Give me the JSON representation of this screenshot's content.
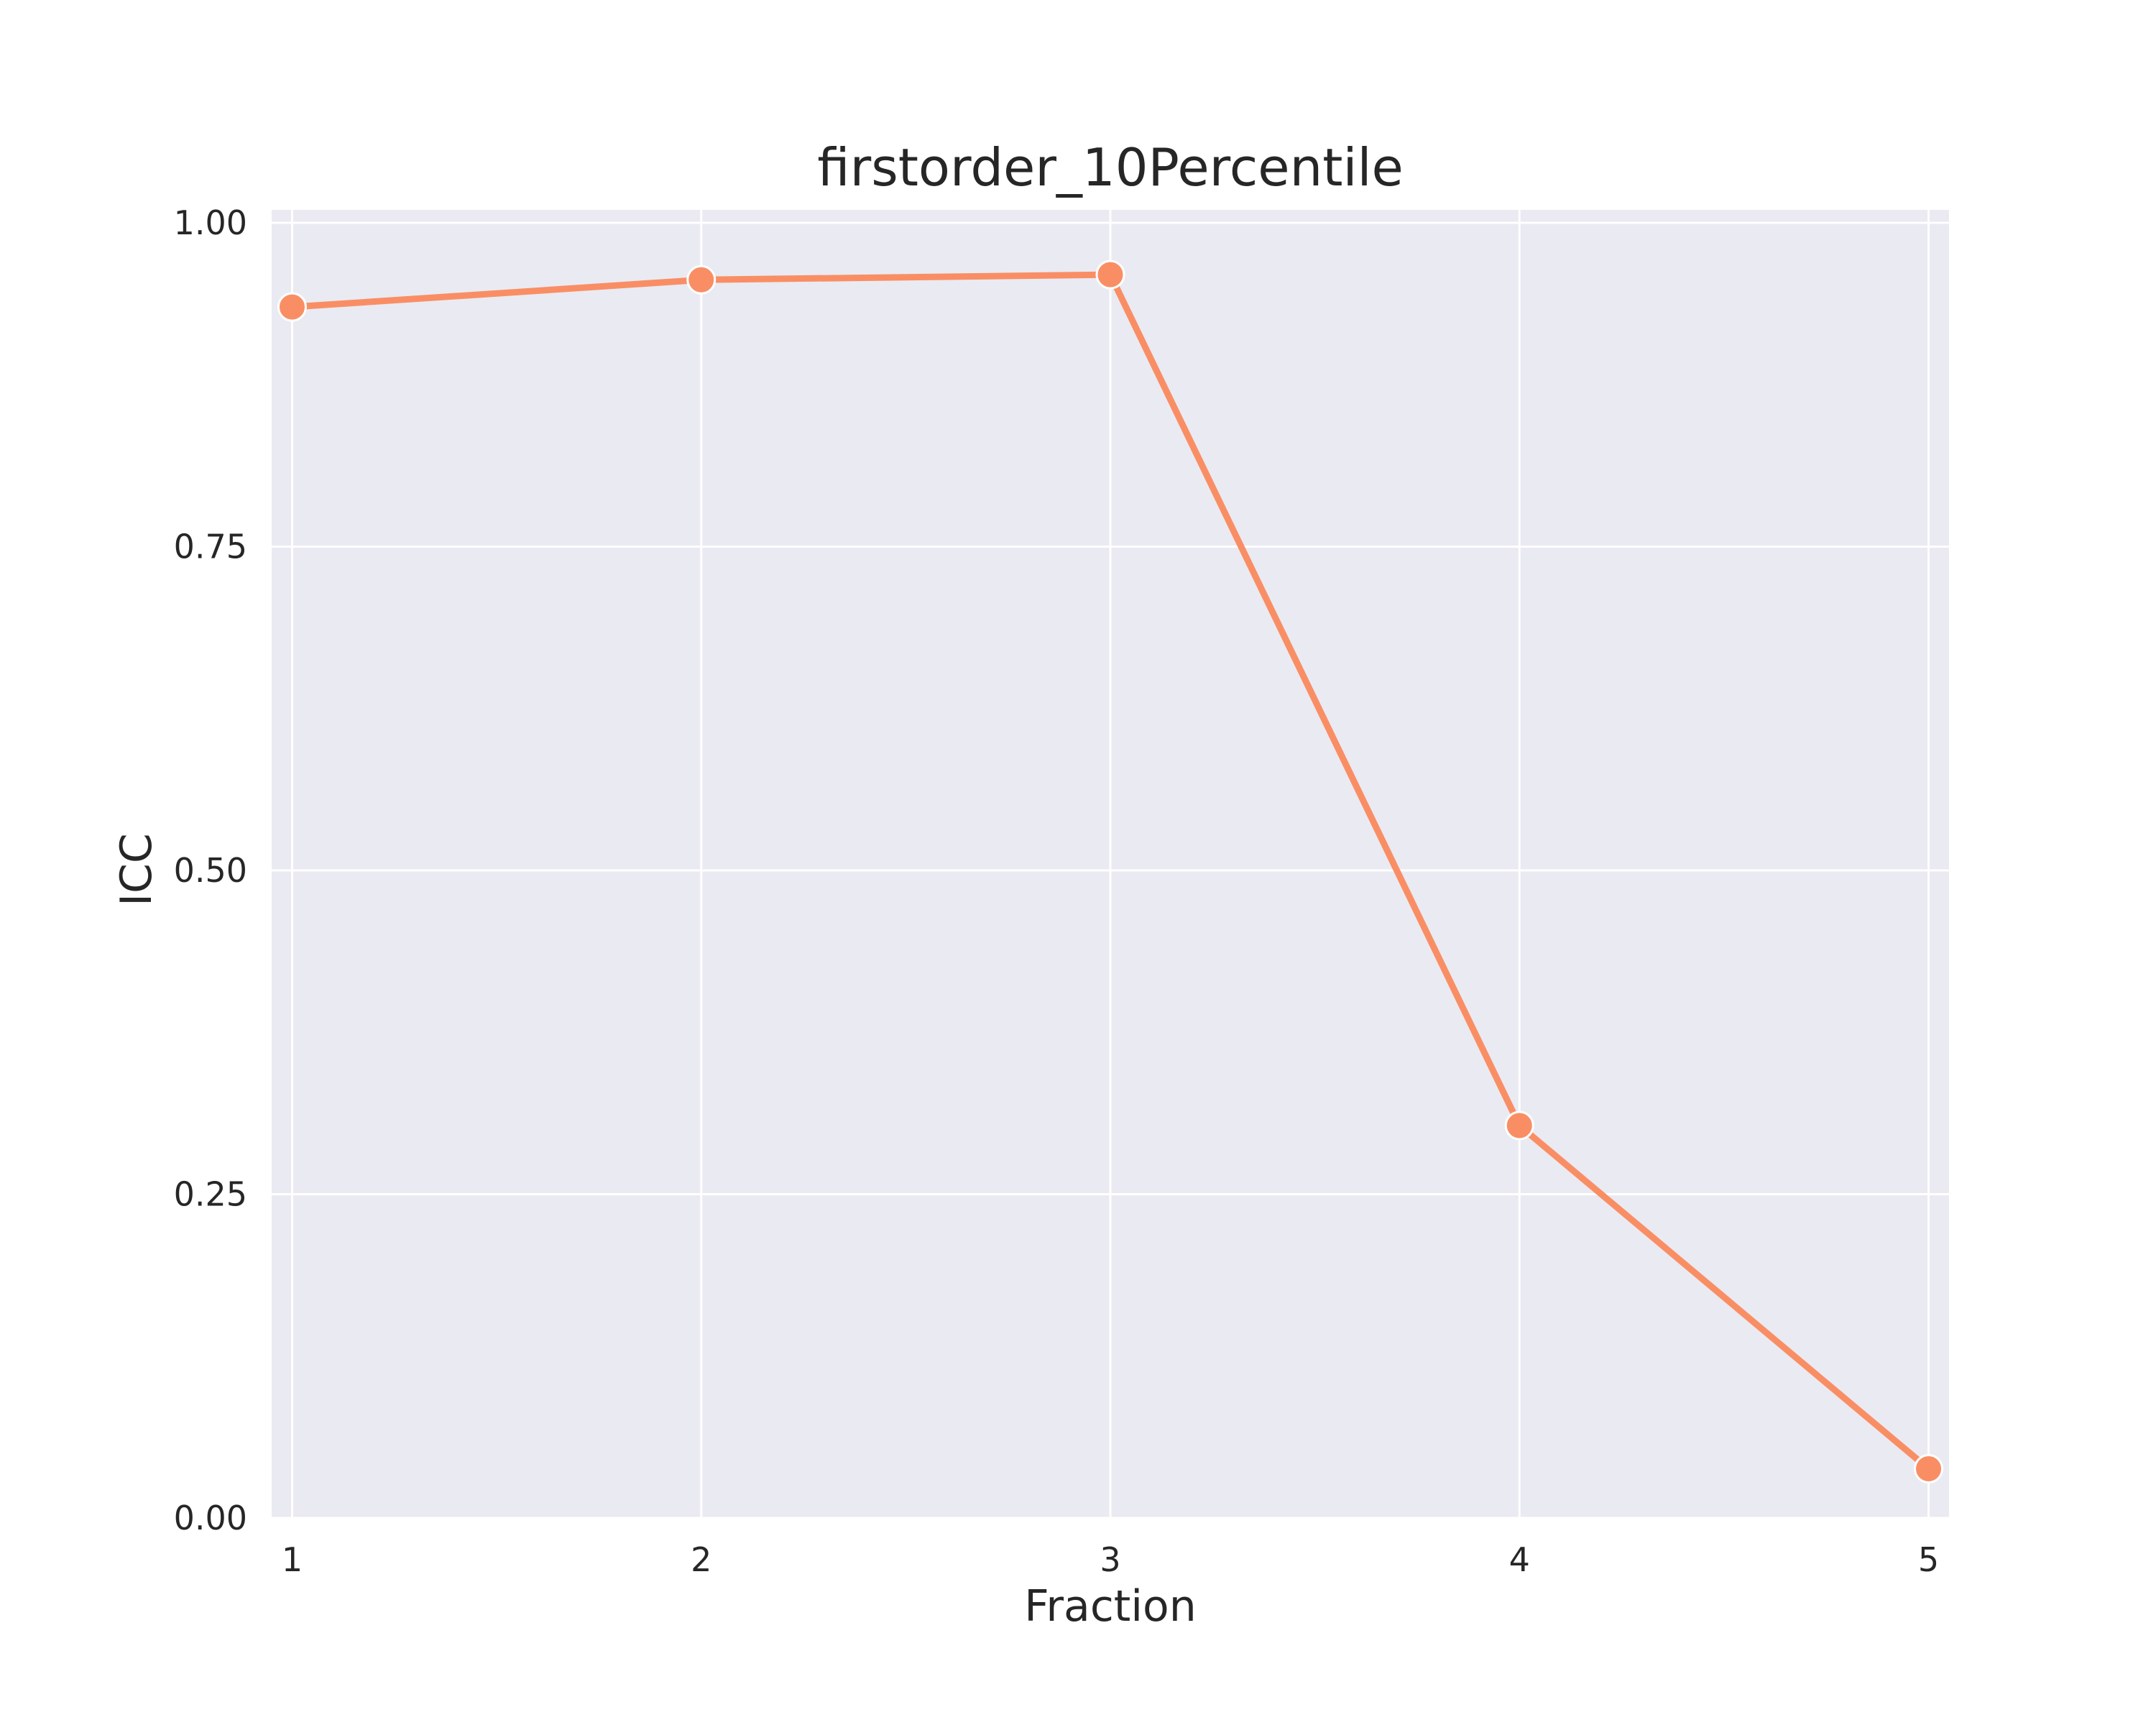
{
  "chart_data": {
    "type": "line",
    "title": "firstorder_10Percentile",
    "xlabel": "Fraction",
    "ylabel": "ICC",
    "x": [
      1,
      2,
      3,
      4,
      5
    ],
    "x_tick_labels": [
      "1",
      "2",
      "3",
      "4",
      "5"
    ],
    "y_tick_values": [
      0.0,
      0.25,
      0.5,
      0.75,
      1.0
    ],
    "y_tick_labels": [
      "0.00",
      "0.25",
      "0.50",
      "0.75",
      "1.00"
    ],
    "xlim": [
      0.95,
      5.05
    ],
    "ylim": [
      0.0,
      1.01
    ],
    "grid": true,
    "legend": false,
    "series": [
      {
        "values": [
          0.935,
          0.956,
          0.96,
          0.303,
          0.038
        ],
        "color": "#f98e65"
      }
    ],
    "colors": {
      "background": "#eaeaf2",
      "grid": "#ffffff",
      "text": "#262626",
      "marker_edge": "#ffffff"
    }
  }
}
